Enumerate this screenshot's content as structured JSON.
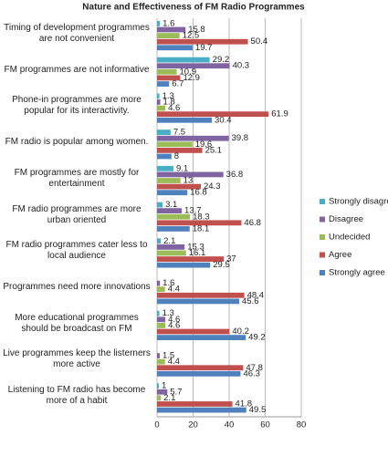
{
  "chart_data": {
    "type": "hbar",
    "title": "Nature and Effectiveness of FM Radio Programmes",
    "categories": [
      "Timing of development programmes are not convenient",
      "FM programmes are not informative",
      "Phone-in programmes are more popular for its interactivity.",
      "FM radio is popular among women.",
      "FM programmes are mostly for entertainment",
      "FM radio programmes are more urban oriented",
      "FM radio programmes cater less to local audience",
      "Programmes need more innovations",
      "More educational programmes should be broadcast on FM",
      "Live programmes keep the listerners more active",
      "Listening to FM radio has become more of a habit"
    ],
    "series": [
      {
        "name": "Strongly disagree",
        "color": "#4bacc6",
        "values": [
          1.6,
          29.2,
          1.3,
          7.5,
          9.1,
          3.1,
          2.1,
          null,
          1.3,
          null,
          1
        ]
      },
      {
        "name": "Disagree",
        "color": "#8064a2",
        "values": [
          15.8,
          40.3,
          1.8,
          39.8,
          36.8,
          13.7,
          15.3,
          1.6,
          4.6,
          1.5,
          5.7
        ]
      },
      {
        "name": "Undecided",
        "color": "#9bbb59",
        "values": [
          12.5,
          10.9,
          4.6,
          19.6,
          13,
          18.3,
          16.1,
          4.4,
          4.6,
          4.4,
          2.1
        ]
      },
      {
        "name": "Agree",
        "color": "#c0504d",
        "values": [
          50.4,
          12.9,
          61.9,
          25.1,
          24.3,
          46.8,
          37,
          48.4,
          40.2,
          47.8,
          41.8
        ]
      },
      {
        "name": "Strongly agree",
        "color": "#4f81bd",
        "values": [
          19.7,
          6.7,
          30.4,
          8,
          16.8,
          18.1,
          29.5,
          45.6,
          49.2,
          46.3,
          49.5
        ]
      }
    ],
    "xlim": [
      0,
      80
    ],
    "xticks": [
      0,
      20,
      40,
      60,
      80
    ],
    "grid": true,
    "legend": "right"
  }
}
